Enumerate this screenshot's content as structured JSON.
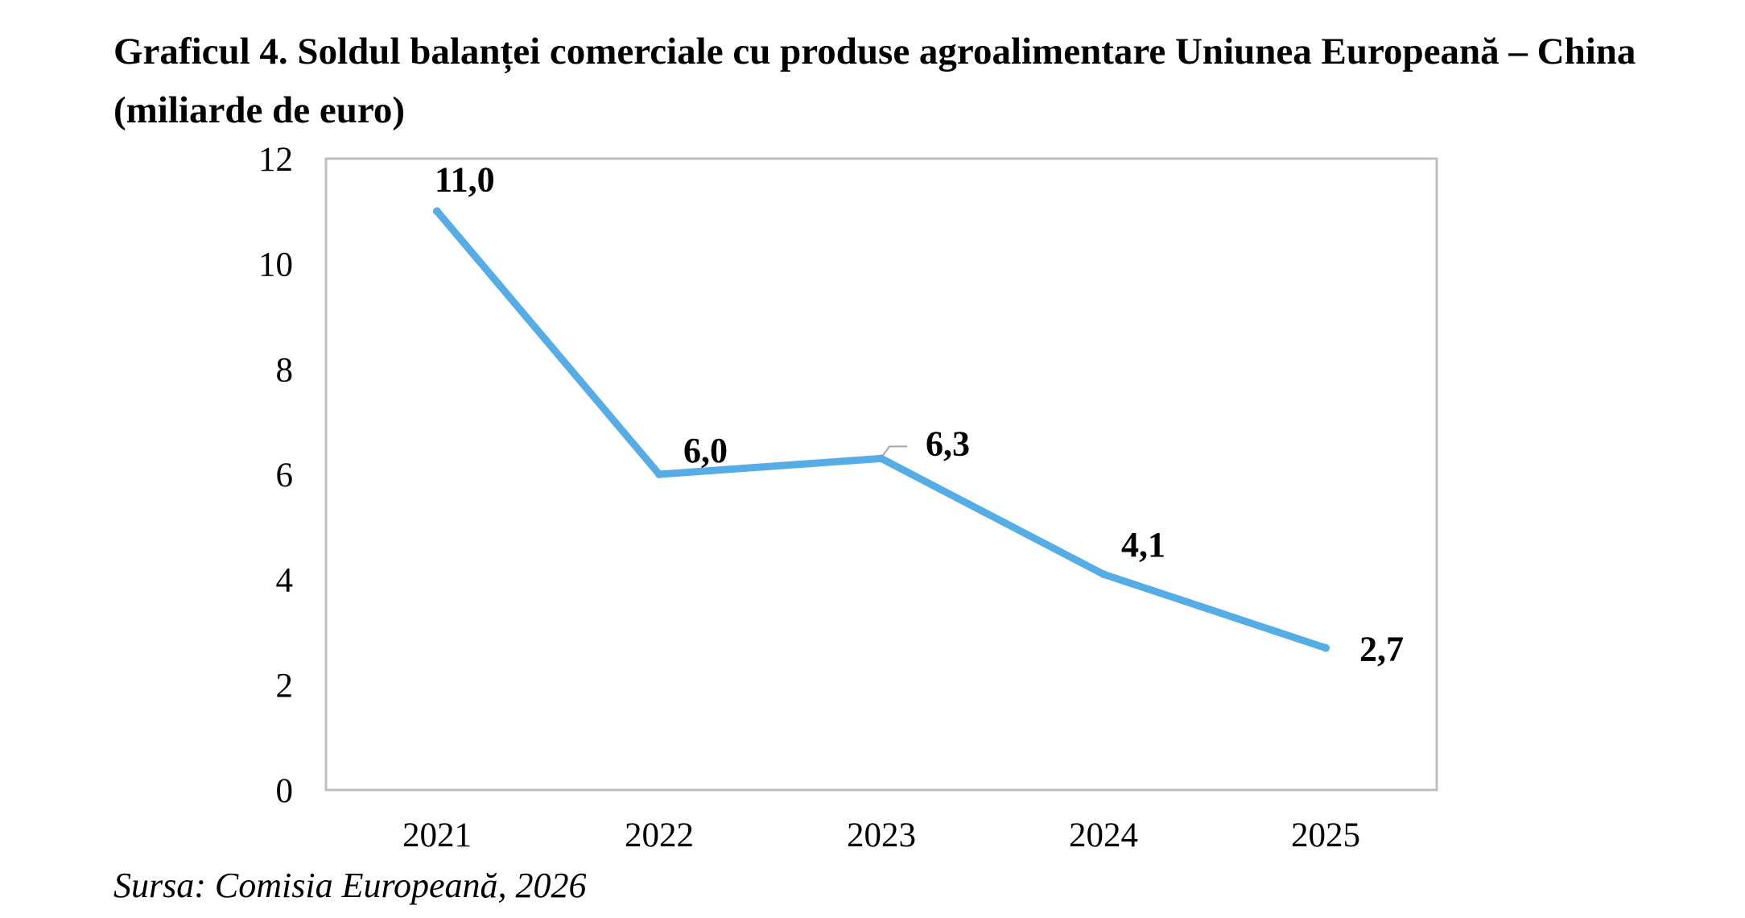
{
  "chart_data": {
    "type": "line",
    "title": "Graficul 4. Soldul balanței comerciale cu produse agroalimentare Uniunea Europeană – China (miliarde de euro)",
    "categories": [
      "2021",
      "2022",
      "2023",
      "2024",
      "2025"
    ],
    "series": [
      {
        "values": [
          11.0,
          6.0,
          6.3,
          4.1,
          2.7
        ],
        "data_labels": [
          "11,0",
          "6,0",
          "6,3",
          "4,1",
          "2,7"
        ],
        "color": "#56ADE6"
      }
    ],
    "ylim": [
      0,
      12
    ],
    "yticks": [
      "0",
      "2",
      "4",
      "6",
      "8",
      "10",
      "12"
    ],
    "grid": false,
    "legend": "none",
    "frame_color": "#BFBFBF"
  },
  "source": "Sursa: Comisia Europeană, 2026"
}
